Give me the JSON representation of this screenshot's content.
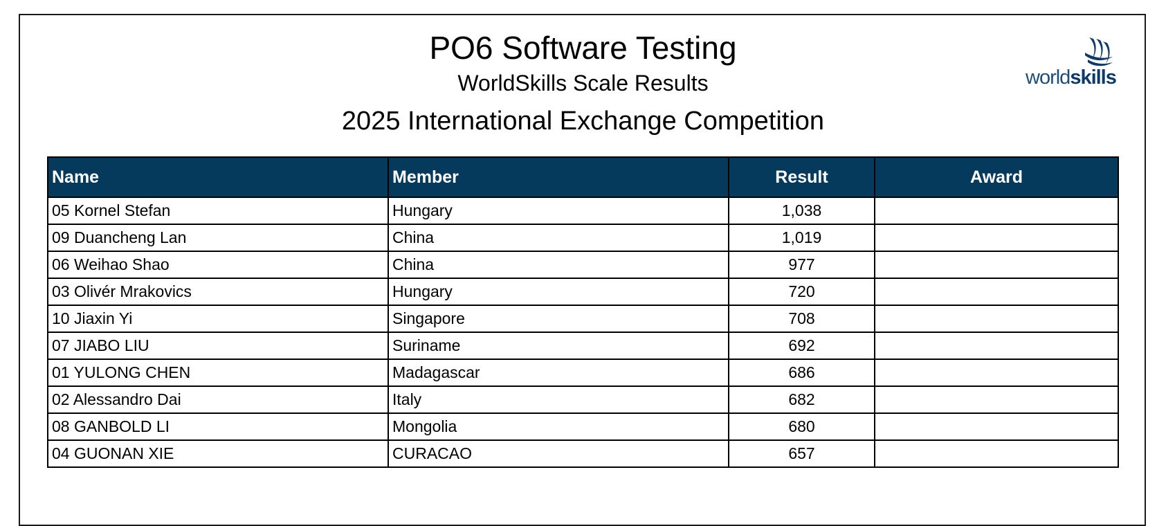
{
  "header": {
    "title": "PO6 Software Testing",
    "subtitle": "WorldSkills Scale Results",
    "event": "2025 International Exchange Competition"
  },
  "logo": {
    "text_light": "world",
    "text_bold": "skills",
    "color": "#0d3a66"
  },
  "table": {
    "header_color": "#063a5c",
    "columns": [
      "Name",
      "Member",
      "Result",
      "Award"
    ],
    "rows": [
      {
        "name": "05 Kornel Stefan",
        "member": "Hungary",
        "result": "1,038",
        "award": ""
      },
      {
        "name": "09 Duancheng Lan",
        "member": "China",
        "result": "1,019",
        "award": ""
      },
      {
        "name": "06 Weihao Shao",
        "member": "China",
        "result": "977",
        "award": ""
      },
      {
        "name": "03 Olivér Mrakovics",
        "member": "Hungary",
        "result": "720",
        "award": ""
      },
      {
        "name": "10 Jiaxin Yi",
        "member": "Singapore",
        "result": "708",
        "award": ""
      },
      {
        "name": "07 JIABO LIU",
        "member": "Suriname",
        "result": "692",
        "award": ""
      },
      {
        "name": "01 YULONG CHEN",
        "member": "Madagascar",
        "result": "686",
        "award": ""
      },
      {
        "name": "02 Alessandro Dai",
        "member": "Italy",
        "result": "682",
        "award": ""
      },
      {
        "name": "08 GANBOLD LI",
        "member": "Mongolia",
        "result": "680",
        "award": ""
      },
      {
        "name": "04 GUONAN XIE",
        "member": "CURACAO",
        "result": "657",
        "award": ""
      }
    ]
  }
}
